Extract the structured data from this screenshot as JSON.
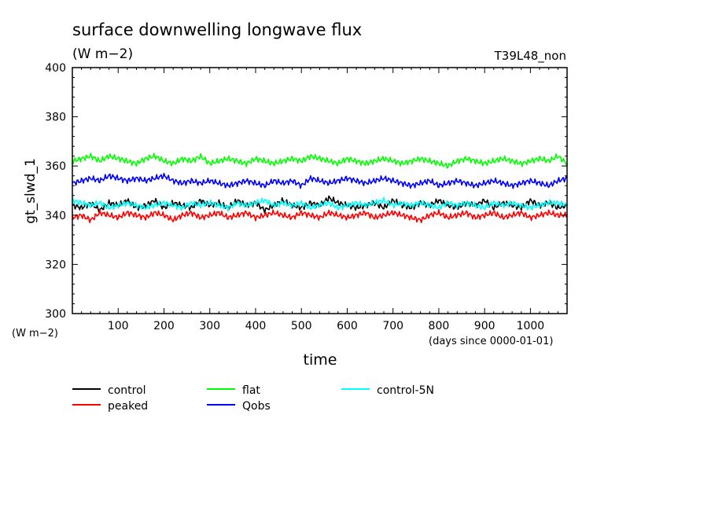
{
  "chart_data": {
    "type": "line",
    "title": "surface downwelling longwave flux",
    "subtitle": "(W m−2)",
    "run_label": "T39L48_non",
    "xlabel": "time",
    "x_units": "(days since 0000-01-01)",
    "ylabel": "gt_slwd_1",
    "y_units": "(W m−2)",
    "xlim": [
      0,
      1080
    ],
    "ylim": [
      300,
      400
    ],
    "x_ticks": [
      100,
      200,
      300,
      400,
      500,
      600,
      700,
      800,
      900,
      1000
    ],
    "y_ticks": [
      300,
      320,
      340,
      360,
      380,
      400
    ],
    "grid": false,
    "legend_position": "bottom",
    "series": [
      {
        "name": "control",
        "color": "#000000",
        "mean": 344,
        "amplitude": 2,
        "values": [
          344,
          343,
          345,
          342,
          345,
          344,
          346,
          343,
          344,
          346,
          343,
          345,
          344,
          343,
          346,
          344,
          345,
          343,
          346,
          344,
          345,
          342,
          344,
          346,
          344,
          343,
          345,
          344,
          347,
          345,
          344,
          343,
          344,
          345,
          343,
          346,
          344,
          343,
          345,
          344,
          346,
          344,
          343,
          345,
          344,
          346,
          343,
          345,
          344,
          343,
          346,
          344,
          345,
          343,
          344
        ]
      },
      {
        "name": "peaked",
        "color": "#ff0000",
        "mean": 340,
        "amplitude": 2,
        "values": [
          339,
          340,
          338,
          341,
          340,
          339,
          341,
          340,
          339,
          341,
          340,
          338,
          340,
          341,
          339,
          340,
          341,
          339,
          340,
          341,
          339,
          340,
          341,
          340,
          339,
          341,
          340,
          339,
          341,
          340,
          339,
          340,
          341,
          339,
          340,
          341,
          340,
          339,
          338,
          340,
          341,
          339,
          340,
          341,
          339,
          340,
          341,
          339,
          340,
          341,
          339,
          340,
          341,
          340,
          340
        ]
      },
      {
        "name": "flat",
        "color": "#00ff00",
        "mean": 362,
        "amplitude": 2,
        "values": [
          362,
          363,
          364,
          362,
          364,
          363,
          362,
          361,
          363,
          364,
          362,
          361,
          363,
          362,
          364,
          361,
          362,
          363,
          362,
          361,
          363,
          362,
          361,
          362,
          363,
          362,
          364,
          363,
          362,
          361,
          363,
          362,
          361,
          362,
          363,
          362,
          361,
          362,
          363,
          362,
          361,
          360,
          362,
          363,
          362,
          361,
          362,
          363,
          362,
          361,
          362,
          363,
          362,
          364,
          361
        ]
      },
      {
        "name": "Qobs",
        "color": "#0000ff",
        "mean": 353,
        "amplitude": 2,
        "values": [
          353,
          354,
          355,
          354,
          356,
          355,
          354,
          355,
          354,
          355,
          356,
          354,
          353,
          354,
          353,
          354,
          353,
          352,
          353,
          354,
          353,
          352,
          354,
          353,
          354,
          352,
          355,
          354,
          353,
          354,
          355,
          354,
          353,
          354,
          355,
          354,
          353,
          352,
          353,
          354,
          352,
          353,
          354,
          353,
          352,
          353,
          354,
          353,
          352,
          353,
          354,
          353,
          352,
          354,
          355
        ]
      },
      {
        "name": "control-5N",
        "color": "#00ffff",
        "mean": 344.5,
        "amplitude": 1.5,
        "values": [
          346,
          345,
          344,
          345,
          343,
          344,
          345,
          344,
          343,
          344,
          345,
          344,
          343,
          345,
          344,
          345,
          344,
          343,
          345,
          344,
          345,
          346,
          344,
          345,
          344,
          345,
          343,
          344,
          345,
          343,
          344,
          345,
          344,
          345,
          346,
          344,
          345,
          344,
          345,
          344,
          343,
          345,
          344,
          345,
          344,
          343,
          345,
          344,
          345,
          344,
          343,
          344,
          345,
          345,
          344
        ]
      }
    ]
  }
}
